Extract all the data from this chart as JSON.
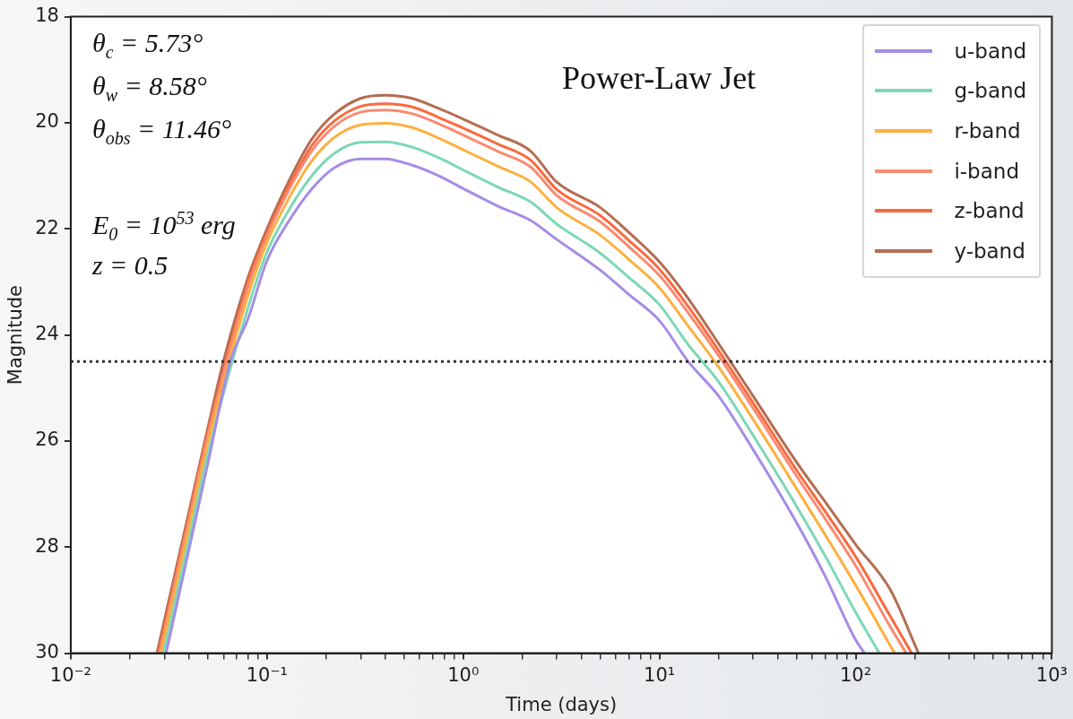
{
  "chart_data": {
    "type": "line",
    "xlabel": "Time (days)",
    "ylabel": "Magnitude",
    "log": "x",
    "xlim": [
      0.01,
      1000
    ],
    "ylim": [
      30,
      18
    ],
    "xticks": [
      {
        "value": 0.01,
        "label": "10⁻²"
      },
      {
        "value": 0.02,
        "label": null
      },
      {
        "value": 0.03,
        "label": null
      },
      {
        "value": 0.04,
        "label": null
      },
      {
        "value": 0.05,
        "label": null
      },
      {
        "value": 0.06,
        "label": null
      },
      {
        "value": 0.07,
        "label": null
      },
      {
        "value": 0.08,
        "label": null
      },
      {
        "value": 0.09,
        "label": null
      },
      {
        "value": 0.1,
        "label": "10⁻¹"
      },
      {
        "value": 0.2,
        "label": null
      },
      {
        "value": 0.3,
        "label": null
      },
      {
        "value": 0.4,
        "label": null
      },
      {
        "value": 0.5,
        "label": null
      },
      {
        "value": 0.6,
        "label": null
      },
      {
        "value": 0.7,
        "label": null
      },
      {
        "value": 0.8,
        "label": null
      },
      {
        "value": 0.9,
        "label": null
      },
      {
        "value": 1,
        "label": "10⁰"
      },
      {
        "value": 2,
        "label": null
      },
      {
        "value": 3,
        "label": null
      },
      {
        "value": 4,
        "label": null
      },
      {
        "value": 5,
        "label": null
      },
      {
        "value": 6,
        "label": null
      },
      {
        "value": 7,
        "label": null
      },
      {
        "value": 8,
        "label": null
      },
      {
        "value": 9,
        "label": null
      },
      {
        "value": 10,
        "label": "10¹"
      },
      {
        "value": 20,
        "label": null
      },
      {
        "value": 30,
        "label": null
      },
      {
        "value": 40,
        "label": null
      },
      {
        "value": 50,
        "label": null
      },
      {
        "value": 60,
        "label": null
      },
      {
        "value": 70,
        "label": null
      },
      {
        "value": 80,
        "label": null
      },
      {
        "value": 90,
        "label": null
      },
      {
        "value": 100,
        "label": "10²"
      },
      {
        "value": 200,
        "label": null
      },
      {
        "value": 300,
        "label": null
      },
      {
        "value": 400,
        "label": null
      },
      {
        "value": 500,
        "label": null
      },
      {
        "value": 600,
        "label": null
      },
      {
        "value": 700,
        "label": null
      },
      {
        "value": 800,
        "label": null
      },
      {
        "value": 900,
        "label": null
      },
      {
        "value": 1000,
        "label": "10³"
      }
    ],
    "yticks": [
      18,
      20,
      22,
      24,
      26,
      28,
      30
    ],
    "grid": false,
    "legend": "top right",
    "ref_lines": [
      {
        "axis": "y",
        "value": 24.5,
        "color": "#333333",
        "line_style": "dotted"
      }
    ],
    "annotations": [
      "θ$_{c}$ = 5.73°",
      "θ$_{w}$ = 8.58°",
      "θ$_{obs}$ = 11.46°",
      "E$_{0}$ = 10$^{53}$ erg",
      "z = 0.5",
      "Power-Law Jet"
    ],
    "series": [
      {
        "name": "u-band",
        "color": "#a58de6",
        "x": [
          0.0306,
          0.04,
          0.05,
          0.065,
          0.08,
          0.1,
          0.13,
          0.17,
          0.22,
          0.3,
          0.4,
          0.55,
          0.75,
          1,
          1.5,
          2.2,
          3,
          5,
          7,
          10,
          14,
          20,
          30,
          50,
          70,
          100,
          111
        ],
        "values": [
          30,
          28.05,
          26.42,
          24.5,
          23.7,
          22.6,
          21.84,
          21.24,
          20.85,
          20.68,
          20.68,
          20.8,
          21.0,
          21.24,
          21.57,
          21.84,
          22.2,
          22.78,
          23.24,
          23.73,
          24.5,
          25.15,
          26.16,
          27.54,
          28.55,
          29.75,
          30
        ]
      },
      {
        "name": "g-band",
        "color": "#7dd8b5",
        "x": [
          0.0297,
          0.04,
          0.05,
          0.08,
          0.1,
          0.13,
          0.17,
          0.22,
          0.3,
          0.4,
          0.55,
          0.75,
          1,
          1.5,
          2.2,
          3,
          5,
          7,
          10,
          14,
          20,
          30,
          50,
          70,
          100,
          132
        ],
        "values": [
          30,
          27.86,
          26.24,
          23.49,
          22.44,
          21.63,
          20.99,
          20.58,
          20.37,
          20.36,
          20.46,
          20.66,
          20.89,
          21.21,
          21.49,
          21.91,
          22.46,
          22.92,
          23.43,
          24.18,
          24.88,
          25.89,
          27.23,
          28.17,
          29.23,
          30
        ]
      },
      {
        "name": "r-band",
        "color": "#fcb040",
        "x": [
          0.0288,
          0.04,
          0.05,
          0.08,
          0.1,
          0.13,
          0.17,
          0.22,
          0.3,
          0.4,
          0.55,
          0.75,
          1,
          1.5,
          2.2,
          3,
          5,
          7,
          10,
          14,
          20,
          30,
          50,
          70,
          100,
          158
        ],
        "values": [
          30,
          27.65,
          26.04,
          23.26,
          22.26,
          21.41,
          20.71,
          20.28,
          20.04,
          20.01,
          20.09,
          20.29,
          20.51,
          20.82,
          21.11,
          21.6,
          22.12,
          22.58,
          23.11,
          23.83,
          24.6,
          25.59,
          26.9,
          27.77,
          28.72,
          30
        ]
      },
      {
        "name": "i-band",
        "color": "#fa8a72",
        "x": [
          0.0283,
          0.04,
          0.05,
          0.08,
          0.1,
          0.13,
          0.17,
          0.22,
          0.3,
          0.4,
          0.55,
          0.75,
          1,
          1.5,
          2.2,
          3,
          5,
          7,
          10,
          14,
          20,
          30,
          50,
          70,
          100,
          150,
          181
        ],
        "values": [
          30,
          27.5,
          25.9,
          23.1,
          22.14,
          21.25,
          20.52,
          20.07,
          19.8,
          19.76,
          19.83,
          20.02,
          20.23,
          20.54,
          20.83,
          21.37,
          21.87,
          22.34,
          22.88,
          23.58,
          24.39,
          25.38,
          26.66,
          27.47,
          28.35,
          29.5,
          30
        ]
      },
      {
        "name": "z-band",
        "color": "#fa6a3d",
        "x": [
          0.028,
          0.04,
          0.05,
          0.08,
          0.1,
          0.13,
          0.17,
          0.22,
          0.3,
          0.4,
          0.55,
          0.75,
          1,
          1.5,
          2.2,
          3,
          5,
          7,
          10,
          14,
          20,
          30,
          50,
          70,
          100,
          150,
          193
        ],
        "values": [
          30,
          27.43,
          25.84,
          23.02,
          22.08,
          21.18,
          20.42,
          19.97,
          19.69,
          19.64,
          19.7,
          19.9,
          20.1,
          20.4,
          20.7,
          21.26,
          21.75,
          22.22,
          22.76,
          23.46,
          24.29,
          25.28,
          26.55,
          27.33,
          28.18,
          29.3,
          30
        ]
      },
      {
        "name": "y-band",
        "color": "#b46e52",
        "x": [
          0.0275,
          0.04,
          0.05,
          0.06,
          0.08,
          0.1,
          0.13,
          0.17,
          0.22,
          0.3,
          0.4,
          0.55,
          0.75,
          1,
          1.5,
          2.2,
          3,
          5,
          7,
          10,
          14,
          20,
          23,
          30,
          50,
          70,
          100,
          150,
          209
        ],
        "values": [
          30,
          27.34,
          25.75,
          24.5,
          22.92,
          22.0,
          21.08,
          20.3,
          19.84,
          19.54,
          19.48,
          19.54,
          19.73,
          19.93,
          20.23,
          20.53,
          21.12,
          21.6,
          22.07,
          22.62,
          23.31,
          24.16,
          24.5,
          25.15,
          26.4,
          27.15,
          27.95,
          28.8,
          30
        ]
      }
    ]
  }
}
